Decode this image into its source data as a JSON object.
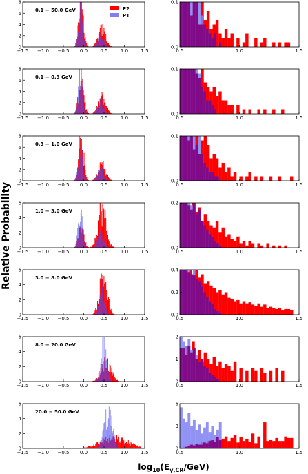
{
  "colors": {
    "p2": "#ff0000",
    "p1": "#7f7ff2",
    "overlap": "#7f007f"
  },
  "chart_data": {
    "type": "histogram-grid",
    "ylabel": "Relative Probability",
    "xlabel": "log10(E_γ,CR/GeV)",
    "xlabel_main": "log",
    "xlabel_sub": "10",
    "xlabel_var": "(E",
    "xlabel_varsub": "γ,CR",
    "xlabel_tail": "/GeV)",
    "legend": [
      "P2",
      "P1"
    ],
    "left_xlim": [
      -1.5,
      1.5
    ],
    "left_xticks": [
      "−1.5",
      "−1.0",
      "−0.5",
      "0.0",
      "0.5",
      "1.0",
      "1.5"
    ],
    "right_xlim": [
      0.5,
      1.5
    ],
    "right_xticks": [
      "0.5",
      "1.0",
      "1.5"
    ],
    "panels": [
      {
        "energy_bin": "0.1 − 50.0 GeV",
        "left_ylim": [
          0,
          8
        ],
        "left_yticks": [
          "0",
          "2",
          "4",
          "6",
          "8"
        ],
        "right_ylim": [
          0,
          0.1
        ],
        "right_yticks": [
          "0.0",
          "0.1"
        ],
        "p1": {
          "peaks": [
            [
              -0.08,
              7.5,
              0.05
            ],
            [
              0.42,
              2.2,
              0.07
            ]
          ],
          "cutoff": 0.62
        },
        "p2": {
          "peaks": [
            [
              -0.06,
              7.0,
              0.06
            ],
            [
              0.45,
              3.0,
              0.09
            ]
          ],
          "cutoff": 1.35
        },
        "p2_tail": [
          0.1,
          0.1,
          0.1,
          0.07,
          0.1,
          0.1,
          0.05,
          0.1,
          0.06,
          0.08,
          0.04,
          0.05,
          0.06,
          0.03,
          0.02,
          0.04,
          0.02,
          0.03,
          0.0,
          0.02,
          0.0,
          0.01,
          0.03,
          0.0,
          0.0,
          0.02,
          0.0,
          0.01,
          0.02,
          0.0,
          0.0,
          0.01,
          0.0,
          0.01,
          0.0,
          0.01,
          0.01,
          0.0,
          0.0,
          0.0
        ],
        "p1_tail": [
          0.1,
          0.1,
          0.1,
          0.1,
          0.1,
          0.1,
          0.1,
          0.1,
          0.07,
          0.05,
          0.04,
          0.03,
          0.02,
          0.03,
          0.0,
          0.01
        ]
      },
      {
        "energy_bin": "0.1 − 0.3 GeV",
        "left_ylim": [
          0,
          8
        ],
        "left_yticks": [
          "0",
          "2",
          "4",
          "6",
          "8"
        ],
        "right_ylim": [
          0,
          0.1
        ],
        "right_yticks": [
          "0.0",
          "0.1"
        ],
        "p1": {
          "peaks": [
            [
              -0.08,
              7.2,
              0.05
            ],
            [
              0.42,
              2.0,
              0.07
            ]
          ],
          "cutoff": 0.62
        },
        "p2": {
          "peaks": [
            [
              -0.06,
              6.8,
              0.06
            ],
            [
              0.45,
              2.8,
              0.09
            ]
          ],
          "cutoff": 1.35
        },
        "p2_tail": [
          0.1,
          0.1,
          0.1,
          0.1,
          0.1,
          0.09,
          0.08,
          0.1,
          0.07,
          0.06,
          0.05,
          0.06,
          0.04,
          0.05,
          0.03,
          0.03,
          0.02,
          0.02,
          0.0,
          0.02,
          0.0,
          0.01,
          0.0,
          0.01,
          0.0,
          0.0,
          0.01,
          0.0,
          0.01,
          0.0,
          0.0,
          0.01,
          0.0,
          0.0,
          0.01,
          0.0,
          0.0,
          0.0,
          0.0,
          0.0
        ],
        "p1_tail": [
          0.1,
          0.1,
          0.1,
          0.1,
          0.1,
          0.1,
          0.1,
          0.09,
          0.06,
          0.05,
          0.03,
          0.03,
          0.02,
          0.01,
          0.0,
          0.0
        ]
      },
      {
        "energy_bin": "0.3 − 1.0 GeV",
        "left_ylim": [
          0,
          8
        ],
        "left_yticks": [
          "0",
          "2",
          "4",
          "6",
          "8"
        ],
        "right_ylim": [
          0,
          0.1
        ],
        "right_yticks": [
          "0.0",
          "0.1"
        ],
        "p1": {
          "peaks": [
            [
              -0.08,
              7.0,
              0.05
            ],
            [
              0.42,
              2.1,
              0.07
            ]
          ],
          "cutoff": 0.62
        },
        "p2": {
          "peaks": [
            [
              -0.06,
              6.6,
              0.06
            ],
            [
              0.45,
              3.0,
              0.09
            ]
          ],
          "cutoff": 1.35
        },
        "p2_tail": [
          0.1,
          0.1,
          0.09,
          0.1,
          0.07,
          0.1,
          0.06,
          0.09,
          0.1,
          0.08,
          0.05,
          0.06,
          0.05,
          0.03,
          0.04,
          0.02,
          0.03,
          0.01,
          0.02,
          0.0,
          0.01,
          0.0,
          0.01,
          0.02,
          0.0,
          0.01,
          0.0,
          0.01,
          0.0,
          0.0,
          0.01,
          0.0,
          0.0,
          0.01,
          0.0,
          0.0,
          0.0,
          0.01,
          0.0,
          0.0
        ],
        "p1_tail": [
          0.1,
          0.1,
          0.1,
          0.1,
          0.1,
          0.1,
          0.08,
          0.1,
          0.06,
          0.04,
          0.03,
          0.02,
          0.02,
          0.01,
          0.01,
          0.0
        ]
      },
      {
        "energy_bin": "1.0 − 3.0 GeV",
        "left_ylim": [
          0,
          6
        ],
        "left_yticks": [
          "0",
          "2",
          "4",
          "6"
        ],
        "right_ylim": [
          0,
          0.2
        ],
        "right_yticks": [
          "0.0",
          "0.2"
        ],
        "p1": {
          "peaks": [
            [
              -0.08,
              5.0,
              0.05
            ],
            [
              0.42,
              1.8,
              0.07
            ]
          ],
          "cutoff": 0.62
        },
        "p2": {
          "peaks": [
            [
              -0.06,
              3.2,
              0.06
            ],
            [
              0.45,
              5.0,
              0.1
            ]
          ],
          "cutoff": 1.35
        },
        "p2_tail": [
          0.2,
          0.2,
          0.19,
          0.17,
          0.2,
          0.16,
          0.18,
          0.12,
          0.15,
          0.12,
          0.1,
          0.09,
          0.12,
          0.07,
          0.09,
          0.05,
          0.06,
          0.04,
          0.03,
          0.05,
          0.02,
          0.03,
          0.01,
          0.03,
          0.02,
          0.0,
          0.02,
          0.01,
          0.0,
          0.02,
          0.0,
          0.01,
          0.0,
          0.01,
          0.0,
          0.01,
          0.0,
          0.0,
          0.0,
          0.0
        ],
        "p1_tail": [
          0.2,
          0.2,
          0.2,
          0.2,
          0.19,
          0.2,
          0.15,
          0.17,
          0.12,
          0.1,
          0.08,
          0.06,
          0.05,
          0.03,
          0.02,
          0.01
        ]
      },
      {
        "energy_bin": "3.0 − 8.0 GeV",
        "left_ylim": [
          0,
          6
        ],
        "left_yticks": [
          "0",
          "2",
          "4",
          "6"
        ],
        "right_ylim": [
          0,
          0.4
        ],
        "right_yticks": [
          "0.0",
          "0.2",
          "0.4"
        ],
        "p1": {
          "peaks": [
            [
              0.45,
              3.6,
              0.06
            ]
          ],
          "cutoff": 0.72
        },
        "p2": {
          "peaks": [
            [
              0.48,
              5.2,
              0.09
            ]
          ],
          "cutoff": 1.4
        },
        "p2_tail": [
          0.4,
          0.4,
          0.38,
          0.4,
          0.35,
          0.4,
          0.33,
          0.36,
          0.28,
          0.3,
          0.26,
          0.24,
          0.2,
          0.22,
          0.18,
          0.2,
          0.15,
          0.14,
          0.12,
          0.13,
          0.1,
          0.12,
          0.1,
          0.11,
          0.09,
          0.08,
          0.1,
          0.07,
          0.09,
          0.06,
          0.07,
          0.06,
          0.05,
          0.06,
          0.04,
          0.05,
          0.05,
          0.04,
          0.0,
          0.0
        ],
        "p1_tail": [
          0.4,
          0.4,
          0.4,
          0.4,
          0.36,
          0.4,
          0.32,
          0.3,
          0.25,
          0.2,
          0.16,
          0.12,
          0.1,
          0.05,
          0.03,
          0.02
        ]
      },
      {
        "energy_bin": "8.0 − 20.0 GeV",
        "left_ylim": [
          0,
          6
        ],
        "left_yticks": [
          "0",
          "2",
          "4",
          "6"
        ],
        "right_ylim": [
          0,
          2
        ],
        "right_yticks": [
          "0",
          "1",
          "2"
        ],
        "p1": {
          "peaks": [
            [
              0.5,
              5.0,
              0.07
            ]
          ],
          "cutoff": 0.8
        },
        "p2": {
          "peaks": [
            [
              0.55,
              2.4,
              0.12
            ]
          ],
          "cutoff": 1.45
        },
        "p2_tail": [
          1.5,
          1.2,
          1.6,
          1.3,
          1.8,
          1.0,
          1.4,
          0.9,
          1.3,
          1.0,
          0.8,
          1.1,
          0.7,
          0.9,
          0.6,
          0.8,
          0.7,
          0.5,
          0.9,
          0.0,
          0.6,
          0.0,
          0.5,
          0.0,
          0.6,
          0.5,
          0.0,
          0.6,
          0.4,
          0.0,
          0.5,
          0.0,
          0.6,
          0.0,
          0.5,
          0.0,
          0.0,
          0.0,
          0.0,
          0.0
        ],
        "p1_tail": [
          2.0,
          1.8,
          1.6,
          1.9,
          1.4,
          1.5,
          1.2,
          0.9,
          1.0,
          0.7,
          0.6,
          0.4,
          0.3,
          0.2,
          0.1,
          0.0
        ]
      },
      {
        "energy_bin": "20.0 − 50.0 GeV",
        "left_ylim": [
          0,
          6
        ],
        "left_yticks": [
          "0",
          "2",
          "4",
          "6"
        ],
        "right_ylim": [
          0,
          6
        ],
        "right_yticks": [
          "0",
          "3",
          "6"
        ],
        "p1": {
          "peaks": [
            [
              0.6,
              4.5,
              0.1
            ]
          ],
          "cutoff": 0.82
        },
        "p2": {
          "peaks": [
            [
              0.75,
              1.3,
              0.35
            ]
          ],
          "cutoff": 1.4
        },
        "p2_tail": [
          0.0,
          0.2,
          0.3,
          0.5,
          0.4,
          0.6,
          0.5,
          0.8,
          0.7,
          1.0,
          1.2,
          0.9,
          1.5,
          1.1,
          1.3,
          1.6,
          1.0,
          1.4,
          1.8,
          0.8,
          1.5,
          1.0,
          1.3,
          0.9,
          2.0,
          0.7,
          1.6,
          0.0,
          3.5,
          1.0,
          1.2,
          1.0,
          1.4,
          1.0,
          1.0,
          1.6,
          1.4,
          1.4,
          0.0,
          0.0
        ],
        "p1_tail": [
          5.5,
          4.0,
          3.5,
          4.8,
          3.0,
          3.8,
          2.5,
          3.2,
          2.0,
          2.8,
          3.5,
          2.2,
          3.0,
          1.8,
          2.5,
          3.6
        ]
      }
    ]
  }
}
